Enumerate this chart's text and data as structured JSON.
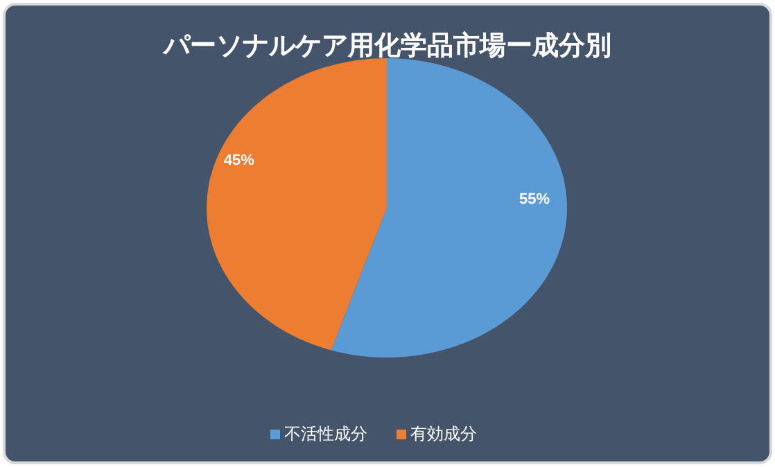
{
  "chart_data": {
    "type": "pie",
    "title": "パーソナルケア用化学品市場ー成分別",
    "categories": [
      "不活性成分",
      "有効成分"
    ],
    "values": [
      55,
      45
    ],
    "colors": [
      "#5b9bd5",
      "#ed7d31"
    ],
    "value_labels": [
      "55%",
      "45%"
    ],
    "legend": "bottom"
  }
}
